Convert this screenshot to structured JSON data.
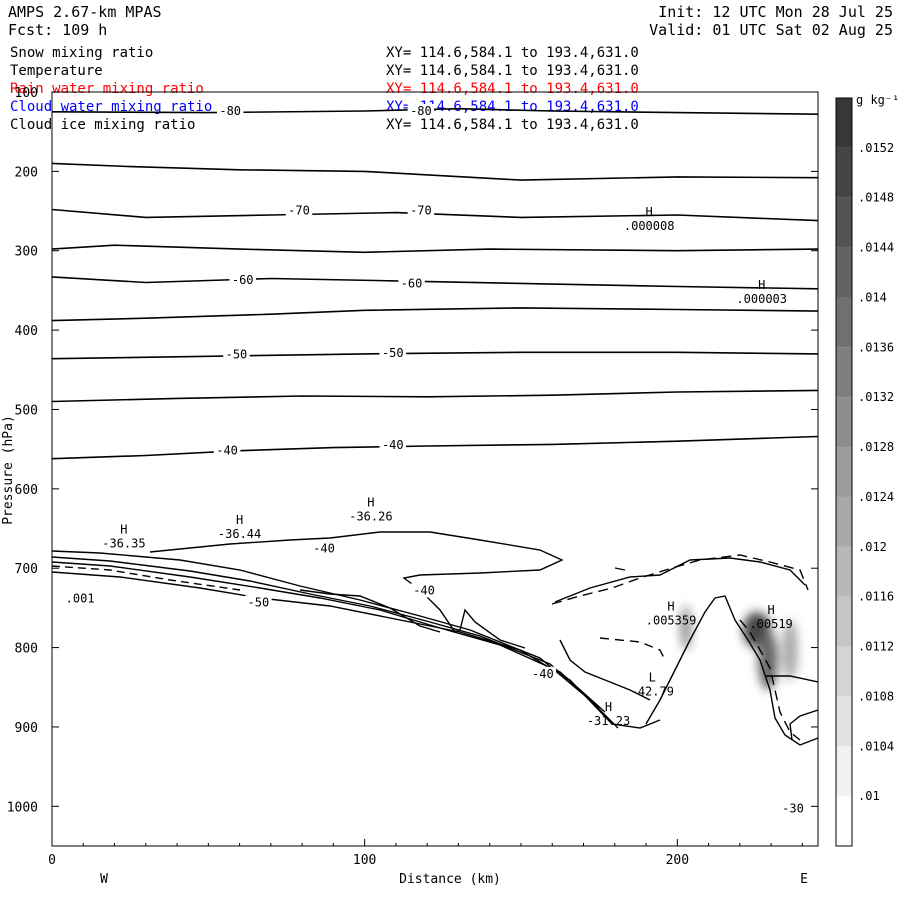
{
  "header": {
    "model": "AMPS 2.67-km MPAS",
    "fcst": "Fcst: 109 h",
    "init": "Init: 12 UTC Mon 28 Jul 25",
    "valid": "Valid: 01 UTC Sat 02 Aug 25"
  },
  "fields": [
    {
      "name": "Snow mixing ratio",
      "coords": "XY= 114.6,584.1 to 193.4,631.0",
      "color": "#000000"
    },
    {
      "name": "Temperature",
      "coords": "XY= 114.6,584.1 to 193.4,631.0",
      "color": "#000000"
    },
    {
      "name": "Rain water mixing ratio",
      "coords": "XY= 114.6,584.1 to 193.4,631.0",
      "color": "#ff0000"
    },
    {
      "name": "Cloud water mixing ratio",
      "coords": "XY= 114.6,584.1 to 193.4,631.0",
      "color": "#0000ff"
    },
    {
      "name": "Cloud ice mixing ratio",
      "coords": "XY= 114.6,584.1 to 193.4,631.0",
      "color": "#000000"
    }
  ],
  "chart_data": {
    "type": "cross-section contour",
    "xlabel": "Distance (km)",
    "ylabel": "Pressure (hPa)",
    "xlim": [
      0,
      245
    ],
    "ylim": [
      100,
      1050
    ],
    "xticks": [
      0,
      100,
      200
    ],
    "yticks": [
      100,
      200,
      300,
      400,
      500,
      600,
      700,
      800,
      900,
      1000
    ],
    "left_label": "W",
    "right_label": "E",
    "colorbar": {
      "unit": "g kg⁻¹",
      "levels": [
        ".01",
        ".0104",
        ".0108",
        ".0112",
        ".0116",
        ".012",
        ".0124",
        ".0128",
        ".0132",
        ".0136",
        ".014",
        ".0144",
        ".0148",
        ".0152"
      ]
    },
    "isotherms": [
      {
        "points": [
          [
            0,
            125
          ],
          [
            50,
            126
          ],
          [
            100,
            124
          ],
          [
            130,
            121
          ],
          [
            160,
            124
          ],
          [
            200,
            126
          ],
          [
            245,
            128
          ]
        ]
      },
      {
        "points": [
          [
            0,
            190
          ],
          [
            25,
            194
          ],
          [
            60,
            198
          ],
          [
            100,
            200
          ],
          [
            150,
            211
          ],
          [
            200,
            207
          ],
          [
            245,
            208
          ]
        ]
      },
      {
        "points": [
          [
            0,
            248
          ],
          [
            30,
            258
          ],
          [
            70,
            255
          ],
          [
            110,
            252
          ],
          [
            150,
            258
          ],
          [
            200,
            255
          ],
          [
            245,
            262
          ]
        ]
      },
      {
        "points": [
          [
            0,
            298
          ],
          [
            20,
            293
          ],
          [
            60,
            298
          ],
          [
            100,
            302
          ],
          [
            140,
            298
          ],
          [
            200,
            300
          ],
          [
            245,
            298
          ]
        ]
      },
      {
        "points": [
          [
            0,
            333
          ],
          [
            30,
            340
          ],
          [
            70,
            335
          ],
          [
            110,
            338
          ],
          [
            160,
            342
          ],
          [
            200,
            345
          ],
          [
            245,
            348
          ]
        ]
      },
      {
        "points": [
          [
            0,
            388
          ],
          [
            30,
            385
          ],
          [
            70,
            380
          ],
          [
            100,
            375
          ],
          [
            150,
            372
          ],
          [
            200,
            374
          ],
          [
            245,
            376
          ]
        ]
      },
      {
        "points": [
          [
            0,
            436
          ],
          [
            50,
            433
          ],
          [
            100,
            430
          ],
          [
            150,
            428
          ],
          [
            200,
            428
          ],
          [
            245,
            430
          ]
        ]
      },
      {
        "points": [
          [
            0,
            490
          ],
          [
            40,
            486
          ],
          [
            80,
            483
          ],
          [
            120,
            484
          ],
          [
            160,
            482
          ],
          [
            200,
            478
          ],
          [
            245,
            476
          ]
        ]
      },
      {
        "points": [
          [
            0,
            562
          ],
          [
            30,
            558
          ],
          [
            60,
            552
          ],
          [
            90,
            548
          ],
          [
            120,
            546
          ],
          [
            160,
            544
          ],
          [
            200,
            540
          ],
          [
            230,
            536
          ],
          [
            245,
            534
          ]
        ]
      }
    ],
    "isotherm_labels": [
      {
        "x": 57,
        "p": 124,
        "text": "-80"
      },
      {
        "x": 118,
        "p": 124,
        "text": "-80"
      },
      {
        "x": 79,
        "p": 249,
        "text": "-70"
      },
      {
        "x": 118,
        "p": 249,
        "text": "-70"
      },
      {
        "x": 61,
        "p": 337,
        "text": "-60"
      },
      {
        "x": 115,
        "p": 341,
        "text": "-60"
      },
      {
        "x": 59,
        "p": 431,
        "text": "-50"
      },
      {
        "x": 109,
        "p": 429,
        "text": "-50"
      },
      {
        "x": 56,
        "p": 552,
        "text": "-40"
      },
      {
        "x": 109,
        "p": 545,
        "text": "-40"
      },
      {
        "x": 87,
        "p": 675,
        "text": "-40"
      },
      {
        "x": 119,
        "p": 728,
        "text": "-40"
      },
      {
        "x": 66,
        "p": 743,
        "text": "-50"
      },
      {
        "x": 157,
        "p": 833,
        "text": "-40"
      },
      {
        "x": 237,
        "p": 1003,
        "text": "-30"
      },
      {
        "x": 9,
        "p": 738,
        "text": ".001"
      }
    ],
    "extrema": [
      {
        "x": 191,
        "p": 256,
        "kind": "H",
        "value": ".000008"
      },
      {
        "x": 227,
        "p": 348,
        "kind": "H",
        "value": ".000003"
      },
      {
        "x": 23,
        "p": 656,
        "kind": "H",
        "value": "-36.35"
      },
      {
        "x": 60,
        "p": 644,
        "kind": "H",
        "value": "-36.44"
      },
      {
        "x": 102,
        "p": 622,
        "kind": "H",
        "value": "-36.26"
      },
      {
        "x": 178,
        "p": 880,
        "kind": "H",
        "value": "-31.23"
      },
      {
        "x": 198,
        "p": 753,
        "kind": "H",
        "value": ".005359"
      },
      {
        "x": 230,
        "p": 758,
        "kind": "H",
        "value": ".00519"
      },
      {
        "x": 192,
        "p": 843,
        "kind": "L",
        "value": "-42.79"
      }
    ]
  }
}
